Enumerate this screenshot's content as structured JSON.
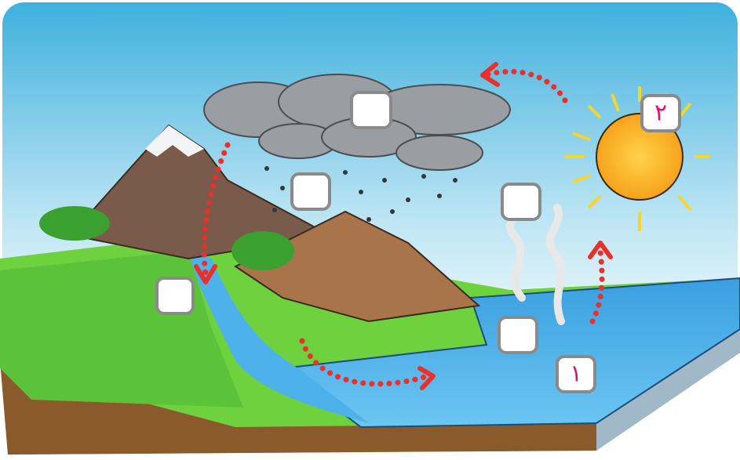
{
  "labels": [
    "۲",
    "۱"
  ]
}
